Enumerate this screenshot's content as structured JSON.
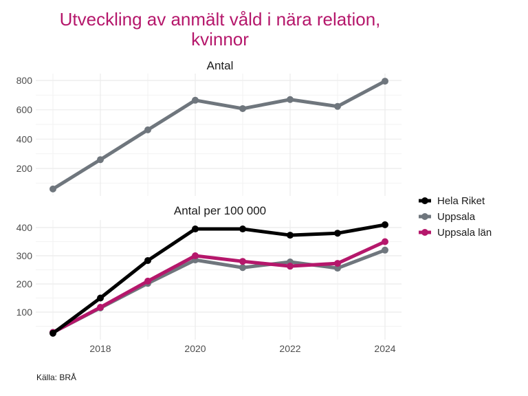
{
  "title_lines": [
    "Utveckling av anmält våld i nära relation,",
    "kvinnor"
  ],
  "title_color": "#B5176B",
  "caption": "Källa: BRÅ",
  "chart_data": [
    {
      "type": "line",
      "title": "Antal",
      "x": [
        2017,
        2018,
        2019,
        2020,
        2021,
        2022,
        2023,
        2024
      ],
      "x_ticks": [
        2018,
        2020,
        2022,
        2024
      ],
      "y_ticks": [
        200,
        400,
        600,
        800
      ],
      "ylim": [
        10,
        830
      ],
      "grid": true,
      "series": [
        {
          "name": "Uppsala",
          "color": "#6F767D",
          "values": [
            60,
            260,
            463,
            665,
            608,
            670,
            623,
            795
          ]
        }
      ]
    },
    {
      "type": "line",
      "title": "Antal per 100 000",
      "x": [
        2017,
        2018,
        2019,
        2020,
        2021,
        2022,
        2023,
        2024
      ],
      "x_ticks": [
        2018,
        2020,
        2022,
        2024
      ],
      "y_ticks": [
        100,
        200,
        300,
        400
      ],
      "ylim": [
        5,
        430
      ],
      "grid": true,
      "series": [
        {
          "name": "Hela Riket",
          "color": "#000000",
          "values": [
            25,
            150,
            283,
            395,
            395,
            373,
            380,
            410
          ]
        },
        {
          "name": "Uppsala",
          "color": "#6F767D",
          "values": [
            28,
            115,
            202,
            285,
            258,
            278,
            256,
            320
          ]
        },
        {
          "name": "Uppsala län",
          "color": "#B5176B",
          "values": [
            28,
            117,
            210,
            300,
            280,
            263,
            273,
            350
          ]
        }
      ]
    }
  ],
  "legend": {
    "position": "right",
    "items": [
      {
        "label": "Hela Riket",
        "color": "#000000"
      },
      {
        "label": "Uppsala",
        "color": "#6F767D"
      },
      {
        "label": "Uppsala län",
        "color": "#B5176B"
      }
    ]
  }
}
